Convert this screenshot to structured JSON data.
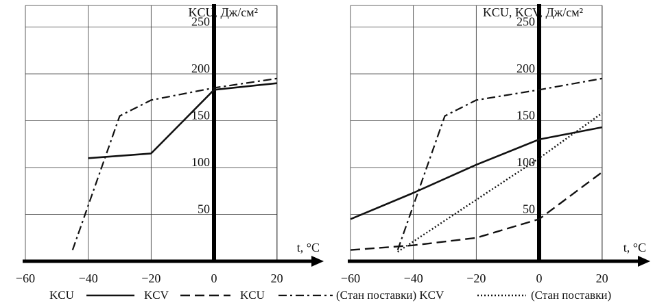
{
  "chart_data": [
    {
      "type": "line",
      "ylabel": "KCU, Дж/см²",
      "xlabel": "t, °C",
      "xlim": [
        -60,
        20
      ],
      "ylim": [
        0,
        260
      ],
      "x_ticks": [
        "−60",
        "−40",
        "−20",
        "0",
        "20"
      ],
      "y_ticks": [
        "50",
        "100",
        "150",
        "200",
        "250"
      ],
      "grid": true,
      "series": [
        {
          "style": "solid",
          "x": [
            -40,
            -20,
            0,
            20
          ],
          "y": [
            110,
            115,
            183,
            190
          ]
        },
        {
          "style": "dashdot",
          "x": [
            -45,
            -30,
            -20,
            0,
            20
          ],
          "y": [
            12,
            155,
            172,
            185,
            195
          ]
        }
      ]
    },
    {
      "type": "line",
      "ylabel": "KCU, KCV, Дж/см²",
      "xlabel": "t, °C",
      "xlim": [
        -60,
        20
      ],
      "ylim": [
        0,
        260
      ],
      "x_ticks": [
        "−60",
        "−40",
        "−20",
        "0",
        "20"
      ],
      "y_ticks": [
        "50",
        "100",
        "150",
        "200",
        "250"
      ],
      "grid": true,
      "series": [
        {
          "style": "solid",
          "x": [
            -60,
            -40,
            -20,
            0,
            20
          ],
          "y": [
            45,
            73,
            103,
            130,
            143
          ]
        },
        {
          "style": "dashed",
          "x": [
            -60,
            -40,
            -20,
            0,
            20
          ],
          "y": [
            12,
            17,
            25,
            45,
            95
          ]
        },
        {
          "style": "dashdot",
          "x": [
            -45,
            -30,
            -20,
            0,
            20
          ],
          "y": [
            12,
            155,
            172,
            183,
            195
          ]
        },
        {
          "style": "dotted",
          "x": [
            -45,
            0,
            20
          ],
          "y": [
            10,
            110,
            158
          ]
        }
      ]
    }
  ],
  "legend": {
    "items": [
      {
        "label": "KCU",
        "style": "solid"
      },
      {
        "label": "KCV",
        "style": "dashed"
      },
      {
        "label": "KCU",
        "style": "dashdot"
      },
      {
        "label": "(Стан поставки) KCV",
        "style": "dotted"
      }
    ],
    "tail": "(Стан поставки)"
  }
}
